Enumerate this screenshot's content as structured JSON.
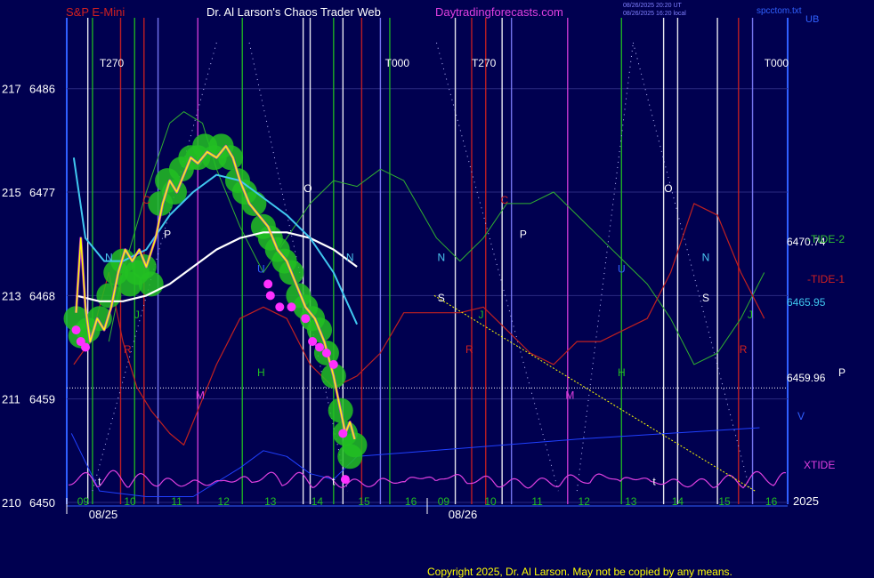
{
  "header": {
    "symbol": "S&P E-Mini",
    "title": "Dr. Al Larson's Chaos Trader Web",
    "site": "Daytradingforecasts.com",
    "stamp1": "08/26/2025 20:20 UT",
    "stamp2": "08/26/2025 16:20 local",
    "file": "spcctom.txt",
    "corner": "UB"
  },
  "footer": {
    "copyright": "Copyright 2025, Dr. Al Larson. May not be copied by any means."
  },
  "chart_data": {
    "type": "line",
    "y_left_ticks": [
      {
        "spy": "217",
        "es": "6486"
      },
      {
        "spy": "215",
        "es": "6477"
      },
      {
        "spy": "213",
        "es": "6468"
      },
      {
        "spy": "211",
        "es": "6459"
      },
      {
        "spy": "210",
        "es": "6450"
      }
    ],
    "ylim": [
      6450,
      6490
    ],
    "hour_labels": [
      "09",
      "10",
      "11",
      "12",
      "13",
      "14",
      "15",
      "16",
      "09",
      "10",
      "11",
      "12",
      "13",
      "14",
      "15",
      "16"
    ],
    "date_labels": [
      "08/25",
      "08/26"
    ],
    "year_label": "2025",
    "right_labels": [
      {
        "text": "6470.74",
        "value": 6470.74
      },
      {
        "text": "6465.95",
        "value": 6465.95
      },
      {
        "text": "6459.96",
        "value": 6459.96
      }
    ],
    "series_labels": {
      "tide2": "-TIDE-2",
      "tide1": "-TIDE-1",
      "xtide": "XTIDE",
      "p": "P",
      "v": "V"
    },
    "markers_top": [
      {
        "text": "T270",
        "hour": 9.5,
        "day": 0
      },
      {
        "text": "T000",
        "hour": 15.6,
        "day": 0
      },
      {
        "text": "T270",
        "hour": 9.75,
        "day": 1
      },
      {
        "text": "T000",
        "hour": 16.0,
        "day": 1
      }
    ],
    "planet_letters": [
      {
        "t": "N",
        "day": 0,
        "h": 9.7,
        "v": 6471,
        "c": "#4cc8f0"
      },
      {
        "t": "C",
        "day": 0,
        "h": 10.5,
        "v": 6476,
        "c": "#d02020"
      },
      {
        "t": "P",
        "day": 0,
        "h": 10.95,
        "v": 6473,
        "c": "#ffffff"
      },
      {
        "t": "J",
        "day": 0,
        "h": 10.3,
        "v": 6466,
        "c": "#20c020"
      },
      {
        "t": "R",
        "day": 0,
        "h": 10.1,
        "v": 6463,
        "c": "#d02020"
      },
      {
        "t": "M",
        "day": 0,
        "h": 11.65,
        "v": 6459,
        "c": "#e040e0"
      },
      {
        "t": "H",
        "day": 0,
        "h": 12.95,
        "v": 6461,
        "c": "#20c020"
      },
      {
        "t": "U",
        "day": 0,
        "h": 12.95,
        "v": 6470,
        "c": "#3060ff"
      },
      {
        "t": "O",
        "day": 0,
        "h": 13.95,
        "v": 6477,
        "c": "#ffffff"
      },
      {
        "t": "N",
        "day": 0,
        "h": 14.85,
        "v": 6471,
        "c": "#4cc8f0"
      },
      {
        "t": "t",
        "day": 0,
        "h": 9.5,
        "v": 6451.5,
        "c": "#ffffff"
      },
      {
        "t": "t",
        "day": 0,
        "h": 14.5,
        "v": 6451.5,
        "c": "#ffffff"
      },
      {
        "t": "N",
        "day": 1,
        "h": 9.1,
        "v": 6471,
        "c": "#4cc8f0"
      },
      {
        "t": "S",
        "day": 1,
        "h": 9.1,
        "v": 6467.5,
        "c": "#ffffff"
      },
      {
        "t": "J",
        "day": 1,
        "h": 9.95,
        "v": 6466,
        "c": "#20c020"
      },
      {
        "t": "R",
        "day": 1,
        "h": 9.7,
        "v": 6463,
        "c": "#d02020"
      },
      {
        "t": "C",
        "day": 1,
        "h": 10.45,
        "v": 6476,
        "c": "#d02020"
      },
      {
        "t": "P",
        "day": 1,
        "h": 10.85,
        "v": 6473,
        "c": "#ffffff"
      },
      {
        "t": "M",
        "day": 1,
        "h": 11.85,
        "v": 6459,
        "c": "#e040e0"
      },
      {
        "t": "H",
        "day": 1,
        "h": 12.95,
        "v": 6461,
        "c": "#20c020"
      },
      {
        "t": "U",
        "day": 1,
        "h": 12.95,
        "v": 6470,
        "c": "#3060ff"
      },
      {
        "t": "O",
        "day": 1,
        "h": 13.95,
        "v": 6477,
        "c": "#ffffff"
      },
      {
        "t": "N",
        "day": 1,
        "h": 14.75,
        "v": 6471,
        "c": "#4cc8f0"
      },
      {
        "t": "S",
        "day": 1,
        "h": 14.75,
        "v": 6467.5,
        "c": "#ffffff"
      },
      {
        "t": "J",
        "day": 1,
        "h": 15.7,
        "v": 6466,
        "c": "#20c020"
      },
      {
        "t": "R",
        "day": 1,
        "h": 15.55,
        "v": 6463,
        "c": "#d02020"
      },
      {
        "t": "t",
        "day": 1,
        "h": 13.65,
        "v": 6451.5,
        "c": "#ffffff"
      }
    ],
    "verticals": [
      {
        "day": 0,
        "h": 9.25,
        "c": "#ffffff"
      },
      {
        "day": 0,
        "h": 9.35,
        "c": "#20c020"
      },
      {
        "day": 0,
        "h": 9.95,
        "c": "#d02020"
      },
      {
        "day": 0,
        "h": 10.25,
        "c": "#20c020"
      },
      {
        "day": 0,
        "h": 10.45,
        "c": "#d02020"
      },
      {
        "day": 0,
        "h": 10.75,
        "c": "#8080ff"
      },
      {
        "day": 0,
        "h": 11.6,
        "c": "#e040e0"
      },
      {
        "day": 0,
        "h": 12.55,
        "c": "#20c020"
      },
      {
        "day": 0,
        "h": 13.85,
        "c": "#ffffff"
      },
      {
        "day": 0,
        "h": 14.0,
        "c": "#ffffff"
      },
      {
        "day": 0,
        "h": 14.5,
        "c": "#20c020"
      },
      {
        "day": 0,
        "h": 14.7,
        "c": "#ffffff"
      },
      {
        "day": 0,
        "h": 15.1,
        "c": "#d02020"
      },
      {
        "day": 0,
        "h": 15.5,
        "c": "#8080ff"
      },
      {
        "day": 0,
        "h": 15.7,
        "c": "#20c020"
      },
      {
        "day": 1,
        "h": 9.4,
        "c": "#ffffff"
      },
      {
        "day": 1,
        "h": 9.75,
        "c": "#d02020"
      },
      {
        "day": 1,
        "h": 10.05,
        "c": "#d02020"
      },
      {
        "day": 1,
        "h": 10.4,
        "c": "#ffffff"
      },
      {
        "day": 1,
        "h": 10.6,
        "c": "#8080ff"
      },
      {
        "day": 1,
        "h": 11.8,
        "c": "#e040e0"
      },
      {
        "day": 1,
        "h": 12.95,
        "c": "#20c020"
      },
      {
        "day": 1,
        "h": 13.85,
        "c": "#ffffff"
      },
      {
        "day": 1,
        "h": 14.15,
        "c": "#ffffff"
      },
      {
        "day": 1,
        "h": 15.0,
        "c": "#ffffff"
      },
      {
        "day": 1,
        "h": 15.45,
        "c": "#d02020"
      },
      {
        "day": 1,
        "h": 15.75,
        "c": "#8080ff"
      }
    ],
    "price": [
      [
        0,
        9.0,
        6466.5
      ],
      [
        0,
        9.1,
        6473
      ],
      [
        0,
        9.2,
        6467
      ],
      [
        0,
        9.3,
        6464
      ],
      [
        0,
        9.45,
        6466
      ],
      [
        0,
        9.6,
        6465
      ],
      [
        0,
        9.75,
        6467
      ],
      [
        0,
        9.9,
        6470
      ],
      [
        0,
        10.05,
        6472
      ],
      [
        0,
        10.2,
        6471
      ],
      [
        0,
        10.35,
        6472
      ],
      [
        0,
        10.5,
        6470.5
      ],
      [
        0,
        10.7,
        6473
      ],
      [
        0,
        10.85,
        6476
      ],
      [
        0,
        11.0,
        6478
      ],
      [
        0,
        11.15,
        6477
      ],
      [
        0,
        11.3,
        6478.5
      ],
      [
        0,
        11.45,
        6480
      ],
      [
        0,
        11.6,
        6479.5
      ],
      [
        0,
        11.8,
        6480.5
      ],
      [
        0,
        12.0,
        6480
      ],
      [
        0,
        12.2,
        6481
      ],
      [
        0,
        12.35,
        6480
      ],
      [
        0,
        12.5,
        6478
      ],
      [
        0,
        12.7,
        6476
      ],
      [
        0,
        12.9,
        6475
      ],
      [
        0,
        13.1,
        6474
      ],
      [
        0,
        13.3,
        6472
      ],
      [
        0,
        13.5,
        6471
      ],
      [
        0,
        13.7,
        6469
      ],
      [
        0,
        13.9,
        6467
      ],
      [
        0,
        14.1,
        6466
      ],
      [
        0,
        14.3,
        6464
      ],
      [
        0,
        14.5,
        6461
      ],
      [
        0,
        14.65,
        6458
      ],
      [
        0,
        14.75,
        6456
      ],
      [
        0,
        14.85,
        6457
      ],
      [
        0,
        14.95,
        6455.5
      ]
    ],
    "bubbles": [
      [
        0,
        9.0,
        6466
      ],
      [
        0,
        9.1,
        6464.5
      ],
      [
        0,
        9.25,
        6465
      ],
      [
        0,
        9.5,
        6466
      ],
      [
        0,
        9.7,
        6468
      ],
      [
        0,
        9.85,
        6470
      ],
      [
        0,
        10.0,
        6471
      ],
      [
        0,
        10.15,
        6469
      ],
      [
        0,
        10.3,
        6470
      ],
      [
        0,
        10.45,
        6470.5
      ],
      [
        0,
        10.6,
        6469
      ],
      [
        0,
        10.8,
        6476
      ],
      [
        0,
        10.95,
        6478
      ],
      [
        0,
        11.1,
        6477
      ],
      [
        0,
        11.25,
        6479
      ],
      [
        0,
        11.45,
        6480
      ],
      [
        0,
        11.6,
        6480
      ],
      [
        0,
        11.75,
        6481
      ],
      [
        0,
        11.95,
        6480
      ],
      [
        0,
        12.1,
        6481
      ],
      [
        0,
        12.3,
        6480
      ],
      [
        0,
        12.45,
        6478
      ],
      [
        0,
        12.6,
        6477
      ],
      [
        0,
        12.8,
        6476
      ],
      [
        0,
        13.0,
        6474
      ],
      [
        0,
        13.15,
        6473
      ],
      [
        0,
        13.3,
        6472
      ],
      [
        0,
        13.45,
        6471
      ],
      [
        0,
        13.6,
        6470
      ],
      [
        0,
        13.75,
        6468
      ],
      [
        0,
        13.9,
        6467
      ],
      [
        0,
        14.05,
        6466
      ],
      [
        0,
        14.2,
        6465
      ],
      [
        0,
        14.35,
        6463
      ],
      [
        0,
        14.5,
        6461
      ],
      [
        0,
        14.65,
        6458
      ],
      [
        0,
        14.75,
        6456
      ],
      [
        0,
        14.85,
        6454
      ],
      [
        0,
        14.95,
        6455
      ]
    ],
    "magenta_dots": [
      [
        0,
        9.0,
        6465
      ],
      [
        0,
        9.1,
        6464
      ],
      [
        0,
        9.2,
        6463.5
      ],
      [
        0,
        13.1,
        6469
      ],
      [
        0,
        13.15,
        6468
      ],
      [
        0,
        13.35,
        6467
      ],
      [
        0,
        13.6,
        6467
      ],
      [
        0,
        13.9,
        6466
      ],
      [
        0,
        14.05,
        6464
      ],
      [
        0,
        14.2,
        6463.5
      ],
      [
        0,
        14.35,
        6463
      ],
      [
        0,
        14.5,
        6462
      ],
      [
        0,
        14.7,
        6456
      ],
      [
        0,
        14.75,
        6452
      ]
    ],
    "white_wave": [
      [
        0,
        9.0,
        6468
      ],
      [
        0,
        9.5,
        6467.5
      ],
      [
        0,
        10.0,
        6467.5
      ],
      [
        0,
        10.5,
        6468
      ],
      [
        0,
        11.0,
        6469
      ],
      [
        0,
        11.5,
        6470.5
      ],
      [
        0,
        12.0,
        6472
      ],
      [
        0,
        12.5,
        6473
      ],
      [
        0,
        13.0,
        6473.5
      ],
      [
        0,
        13.5,
        6473.5
      ],
      [
        0,
        14.0,
        6473
      ],
      [
        0,
        14.5,
        6472
      ],
      [
        0,
        15.0,
        6470.5
      ]
    ],
    "cyan_wave": [
      [
        0,
        8.95,
        6480
      ],
      [
        0,
        9.2,
        6473
      ],
      [
        0,
        9.6,
        6471
      ],
      [
        0,
        10.0,
        6471
      ],
      [
        0,
        10.5,
        6472
      ],
      [
        0,
        11.0,
        6475
      ],
      [
        0,
        11.5,
        6477
      ],
      [
        0,
        12.0,
        6478.5
      ],
      [
        0,
        12.5,
        6478
      ],
      [
        0,
        13.0,
        6476.5
      ],
      [
        0,
        13.5,
        6475
      ],
      [
        0,
        14.0,
        6473
      ],
      [
        0,
        14.5,
        6470
      ],
      [
        0,
        15.0,
        6465.5
      ]
    ],
    "red_tide": [
      [
        0,
        8.95,
        6462
      ],
      [
        0,
        9.3,
        6464
      ],
      [
        0,
        9.7,
        6470
      ],
      [
        0,
        10.0,
        6464
      ],
      [
        0,
        10.3,
        6460
      ],
      [
        0,
        10.6,
        6458
      ],
      [
        0,
        11.0,
        6456
      ],
      [
        0,
        11.3,
        6455
      ],
      [
        0,
        11.6,
        6458
      ],
      [
        0,
        12.0,
        6462
      ],
      [
        0,
        12.5,
        6466
      ],
      [
        0,
        13.0,
        6467
      ],
      [
        0,
        13.5,
        6466
      ],
      [
        0,
        14.0,
        6462
      ],
      [
        0,
        14.5,
        6460
      ],
      [
        0,
        15.0,
        6461
      ],
      [
        0,
        15.5,
        6463
      ],
      [
        0,
        16.0,
        6466.5
      ],
      [
        1,
        9.5,
        6466.5
      ],
      [
        1,
        10.0,
        6467
      ],
      [
        1,
        10.5,
        6465
      ],
      [
        1,
        11.0,
        6463
      ],
      [
        1,
        11.5,
        6462
      ],
      [
        1,
        12.0,
        6464
      ],
      [
        1,
        12.5,
        6464
      ],
      [
        1,
        13.0,
        6465
      ],
      [
        1,
        13.5,
        6466
      ],
      [
        1,
        14.0,
        6470
      ],
      [
        1,
        14.5,
        6476
      ],
      [
        1,
        15.0,
        6475
      ],
      [
        1,
        15.5,
        6470
      ],
      [
        1,
        16.0,
        6466
      ]
    ],
    "green_tide": [
      [
        0,
        9.7,
        6464
      ],
      [
        0,
        10.0,
        6470
      ],
      [
        0,
        10.5,
        6477
      ],
      [
        0,
        11.0,
        6483
      ],
      [
        0,
        11.3,
        6484
      ],
      [
        0,
        11.7,
        6483
      ],
      [
        0,
        12.0,
        6479
      ],
      [
        0,
        12.5,
        6474
      ],
      [
        0,
        13.0,
        6470
      ],
      [
        0,
        13.5,
        6473
      ],
      [
        0,
        14.0,
        6476
      ],
      [
        0,
        14.5,
        6478
      ],
      [
        0,
        15.0,
        6477.5
      ],
      [
        0,
        15.5,
        6479
      ],
      [
        0,
        16.0,
        6478
      ],
      [
        1,
        9.0,
        6473
      ],
      [
        1,
        9.5,
        6471
      ],
      [
        1,
        10.0,
        6473
      ],
      [
        1,
        10.5,
        6476
      ],
      [
        1,
        11.0,
        6476
      ],
      [
        1,
        11.5,
        6477
      ],
      [
        1,
        12.0,
        6475
      ],
      [
        1,
        12.5,
        6473
      ],
      [
        1,
        13.0,
        6471
      ],
      [
        1,
        13.5,
        6469
      ],
      [
        1,
        14.0,
        6466
      ],
      [
        1,
        14.5,
        6462
      ],
      [
        1,
        15.0,
        6463
      ],
      [
        1,
        15.5,
        6466
      ],
      [
        1,
        16.0,
        6470
      ]
    ],
    "trendline": [
      [
        1,
        8.95,
        6468
      ],
      [
        1,
        15.8,
        6451
      ]
    ],
    "ref_hline": 6459.96
  }
}
